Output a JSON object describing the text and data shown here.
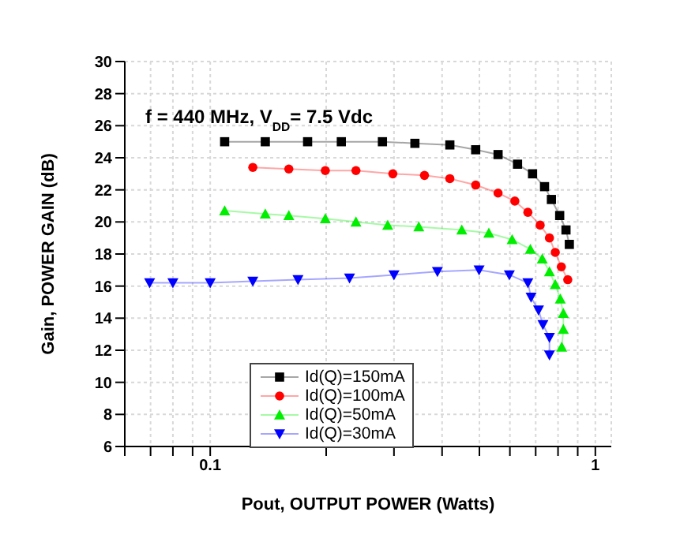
{
  "chart_data": {
    "type": "line",
    "xlabel": "Pout, OUTPUT POWER (Watts)",
    "ylabel": "Gain, POWER GAIN (dB)",
    "annotations": [
      "f = 440 MHz, V$_{DD}$= 7.5 Vdc"
    ],
    "log": "x",
    "grid": true,
    "legend": "bottom left",
    "line_style": "solid",
    "xlim": [
      0.06,
      1.1
    ],
    "xticks": [
      {
        "value": 0.06,
        "label": null
      },
      {
        "value": 0.07,
        "label": null
      },
      {
        "value": 0.08,
        "label": null
      },
      {
        "value": 0.09,
        "label": null
      },
      0.1,
      {
        "value": 0.2,
        "label": null
      },
      {
        "value": 0.3,
        "label": null
      },
      {
        "value": 0.4,
        "label": null
      },
      {
        "value": 0.5,
        "label": null
      },
      {
        "value": 0.6,
        "label": null
      },
      {
        "value": 0.7,
        "label": null
      },
      {
        "value": 0.8,
        "label": null
      },
      {
        "value": 0.9,
        "label": null
      },
      1
    ],
    "ylim": [
      6,
      30
    ],
    "yticks": [
      6,
      8,
      10,
      12,
      14,
      16,
      18,
      20,
      22,
      24,
      26,
      28,
      30
    ],
    "series": [
      {
        "name": "Id(Q)=150mA",
        "color": "#000000",
        "marker": "square",
        "x": [
          0.109,
          0.139,
          0.179,
          0.219,
          0.28,
          0.34,
          0.419,
          0.489,
          0.559,
          0.628,
          0.687,
          0.738,
          0.769,
          0.808,
          0.839,
          0.856
        ],
        "values": [
          25.0,
          25.0,
          25.0,
          25.0,
          25.0,
          24.9,
          24.8,
          24.5,
          24.2,
          23.6,
          23.0,
          22.2,
          21.4,
          20.4,
          19.5,
          18.6
        ]
      },
      {
        "name": "Id(Q)=100mA",
        "color": "#ff0000",
        "marker": "circle",
        "x": [
          0.129,
          0.16,
          0.199,
          0.239,
          0.298,
          0.36,
          0.419,
          0.489,
          0.559,
          0.618,
          0.668,
          0.719,
          0.76,
          0.787,
          0.816,
          0.848
        ],
        "values": [
          23.4,
          23.3,
          23.2,
          23.2,
          23.0,
          22.9,
          22.7,
          22.3,
          21.8,
          21.3,
          20.6,
          19.8,
          19.0,
          18.1,
          17.2,
          16.4
        ]
      },
      {
        "name": "Id(Q)=50mA",
        "color": "#00ee00",
        "marker": "triangle",
        "x": [
          0.109,
          0.139,
          0.16,
          0.199,
          0.239,
          0.289,
          0.348,
          0.45,
          0.529,
          0.608,
          0.678,
          0.728,
          0.76,
          0.787,
          0.811,
          0.826,
          0.826,
          0.818
        ],
        "values": [
          20.7,
          20.5,
          20.4,
          20.2,
          20.0,
          19.8,
          19.7,
          19.5,
          19.3,
          18.9,
          18.3,
          17.7,
          16.9,
          16.1,
          15.2,
          14.3,
          13.3,
          12.2
        ]
      },
      {
        "name": "Id(Q)=30mA",
        "color": "#0000ff",
        "marker": "triangle-down",
        "x": [
          0.0696,
          0.08,
          0.1,
          0.129,
          0.169,
          0.23,
          0.3,
          0.389,
          0.499,
          0.598,
          0.668,
          0.681,
          0.712,
          0.731,
          0.76,
          0.76
        ],
        "values": [
          16.2,
          16.2,
          16.2,
          16.3,
          16.4,
          16.5,
          16.7,
          16.9,
          17.0,
          16.7,
          16.2,
          15.3,
          14.5,
          13.6,
          12.8,
          11.7
        ]
      }
    ]
  }
}
